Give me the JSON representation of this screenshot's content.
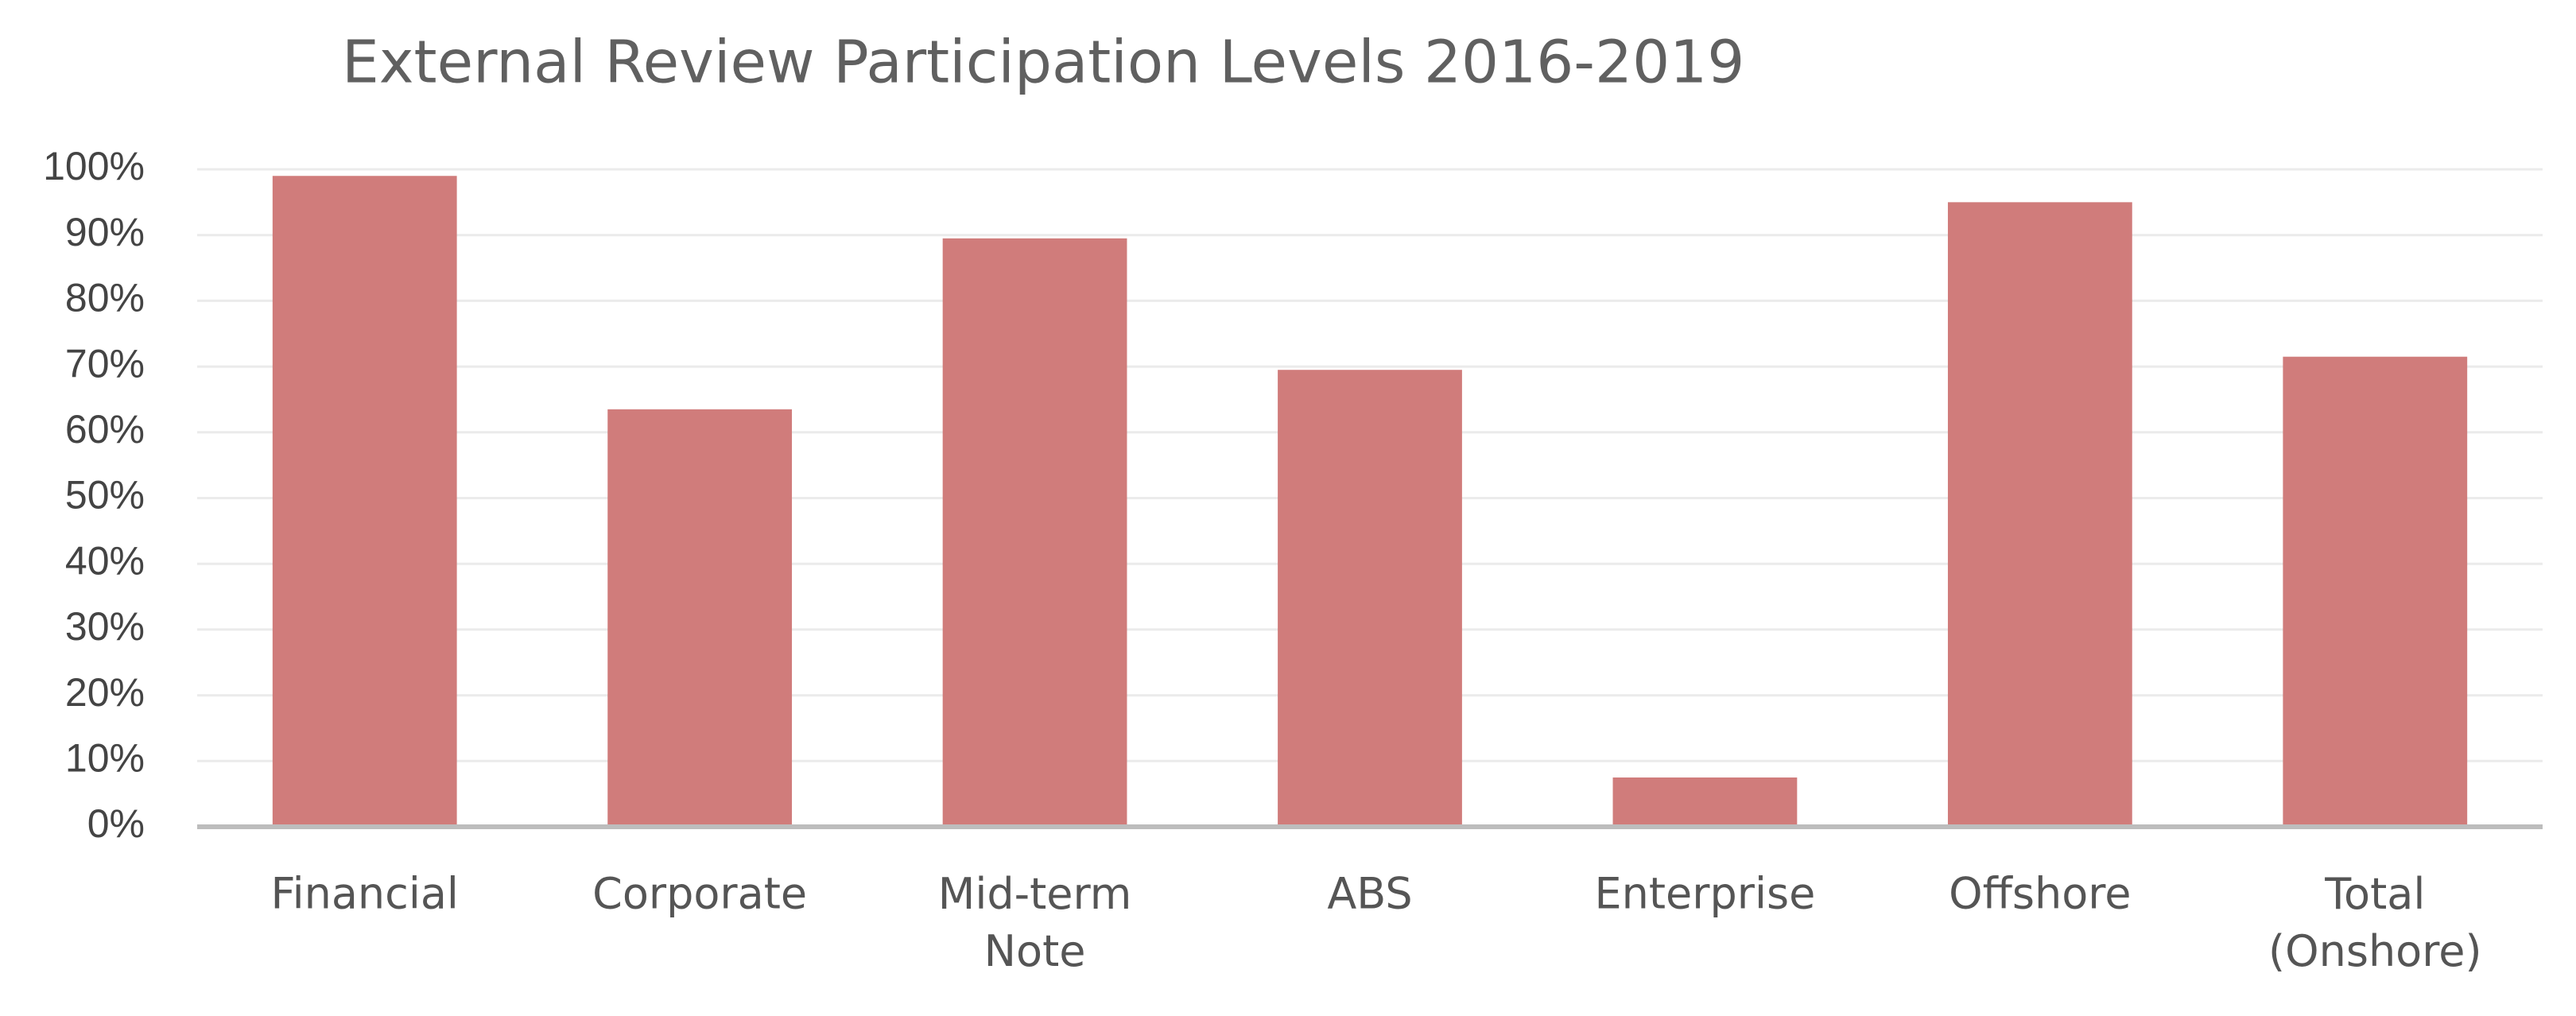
{
  "chart_data": {
    "type": "bar",
    "title": "External Review Participation Levels 2016-2019",
    "categories": [
      "Financial",
      "Corporate",
      "Mid-term Note",
      "ABS",
      "Enterprise",
      "Offshore",
      "Total (Onshore)"
    ],
    "values": [
      99,
      63.5,
      89.5,
      69.5,
      7.5,
      95,
      71.5
    ],
    "color": "#d07c7b",
    "ylim": [
      0,
      100
    ],
    "yticks": [
      {
        "value": 0,
        "label": "0%"
      },
      {
        "value": 10,
        "label": "10%"
      },
      {
        "value": 20,
        "label": "20%"
      },
      {
        "value": 30,
        "label": "30%"
      },
      {
        "value": 40,
        "label": "40%"
      },
      {
        "value": 50,
        "label": "50%"
      },
      {
        "value": 60,
        "label": "60%"
      },
      {
        "value": 70,
        "label": "70%"
      },
      {
        "value": 80,
        "label": "80%"
      },
      {
        "value": 90,
        "label": "90%"
      },
      {
        "value": 100,
        "label": "100%"
      }
    ],
    "grid": true
  }
}
